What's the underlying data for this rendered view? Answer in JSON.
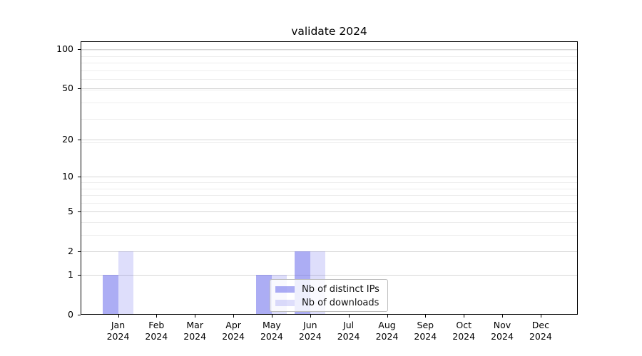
{
  "title": "validate 2024",
  "chart_data": {
    "type": "bar",
    "title": "validate 2024",
    "categories": [
      "Jan 2024",
      "Feb 2024",
      "Mar 2024",
      "Apr 2024",
      "May 2024",
      "Jun 2024",
      "Jul 2024",
      "Aug 2024",
      "Sep 2024",
      "Oct 2024",
      "Nov 2024",
      "Dec 2024"
    ],
    "series": [
      {
        "name": "Nb of distinct IPs",
        "values": [
          1,
          0,
          0,
          0,
          1,
          2,
          0,
          0,
          0,
          0,
          0,
          0
        ],
        "color": "rgba(90,92,233,0.5)"
      },
      {
        "name": "Nb of downloads",
        "values": [
          2,
          0,
          0,
          0,
          1,
          2,
          0,
          0,
          0,
          0,
          0,
          0
        ],
        "color": "rgba(90,92,233,0.2)"
      }
    ],
    "xlabel": "",
    "ylabel": "",
    "yscale": "log1p",
    "ytick_values": [
      0,
      1,
      2,
      5,
      10,
      20,
      50,
      100
    ],
    "minor_grid_log_values": [
      2,
      3,
      4,
      5,
      6,
      7,
      8,
      9,
      10,
      20,
      30,
      40,
      50,
      60,
      70,
      80,
      90,
      100
    ],
    "ylim": [
      0,
      116
    ],
    "grid": true,
    "legend_position": "lower center"
  },
  "colors": {
    "bar_ips_composited": "#acadf4",
    "bar_downloads_composited": "#dedefb",
    "major_grid": "#d6d6d6",
    "minor_grid": "#ededed",
    "spine": "#000000",
    "legend_border": "#bdbdbd"
  }
}
